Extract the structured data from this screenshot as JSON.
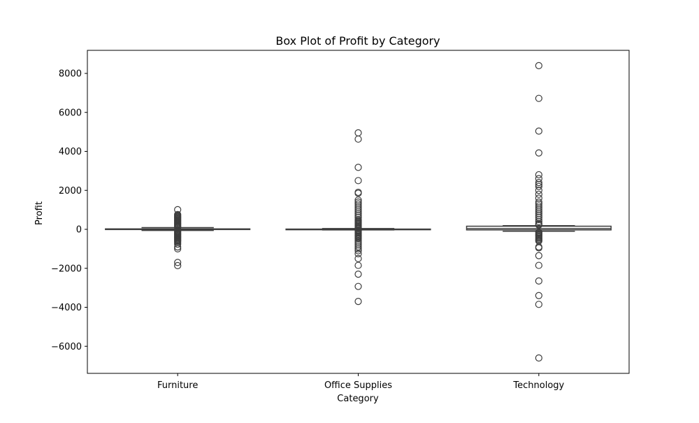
{
  "chart_data": {
    "type": "box",
    "title": "Box Plot of Profit by Category",
    "xlabel": "Category",
    "ylabel": "Profit",
    "ylim": [
      -6800,
      8500
    ],
    "yticks": [
      -6000,
      -4000,
      -2000,
      0,
      2000,
      4000,
      6000,
      8000
    ],
    "ytick_labels": [
      "−6000",
      "−4000",
      "−2000",
      "0",
      "2000",
      "4000",
      "6000",
      "8000"
    ],
    "grid": false,
    "categories": [
      "Furniture",
      "Office Supplies",
      "Technology"
    ],
    "boxes": [
      {
        "category": "Furniture",
        "q1": -10,
        "median": 8,
        "q3": 24,
        "whisker_low": -60,
        "whisker_high": 90,
        "outliers": [
          1010,
          760,
          720,
          680,
          640,
          600,
          560,
          520,
          480,
          440,
          400,
          360,
          320,
          280,
          240,
          200,
          160,
          120,
          100,
          -100,
          -140,
          -180,
          -220,
          -260,
          -300,
          -340,
          -380,
          -420,
          -460,
          -500,
          -540,
          -580,
          -620,
          -680,
          -760,
          -900,
          -1000,
          -1700,
          -1860
        ]
      },
      {
        "category": "Office Supplies",
        "q1": -5,
        "median": 3,
        "q3": 14,
        "whisker_low": -30,
        "whisker_high": 40,
        "outliers": [
          4950,
          4630,
          3180,
          2500,
          1900,
          1850,
          1500,
          1400,
          1300,
          1200,
          1100,
          1000,
          900,
          800,
          700,
          600,
          500,
          450,
          400,
          350,
          300,
          250,
          200,
          150,
          100,
          60,
          -60,
          -100,
          -150,
          -200,
          -250,
          -300,
          -350,
          -400,
          -450,
          -500,
          -600,
          -700,
          -800,
          -900,
          -1000,
          -1100,
          -1250,
          -1500,
          -1850,
          -2300,
          -2930,
          -3700
        ]
      },
      {
        "category": "Technology",
        "q1": -30,
        "median": 40,
        "q3": 160,
        "whisker_low": -100,
        "whisker_high": 190,
        "outliers": [
          8400,
          6720,
          5040,
          3920,
          2800,
          2600,
          2400,
          2300,
          2200,
          2000,
          1800,
          1600,
          1400,
          1300,
          1200,
          1100,
          1000,
          900,
          800,
          700,
          600,
          500,
          400,
          300,
          250,
          220,
          -150,
          -200,
          -250,
          -300,
          -350,
          -400,
          -450,
          -500,
          -550,
          -600,
          -900,
          -950,
          -1350,
          -1850,
          -2650,
          -3400,
          -3850,
          -6600
        ]
      }
    ],
    "colors": {
      "stroke": "#3d3d3d",
      "box_fill": "#ffffff",
      "frame": "#000000"
    }
  }
}
